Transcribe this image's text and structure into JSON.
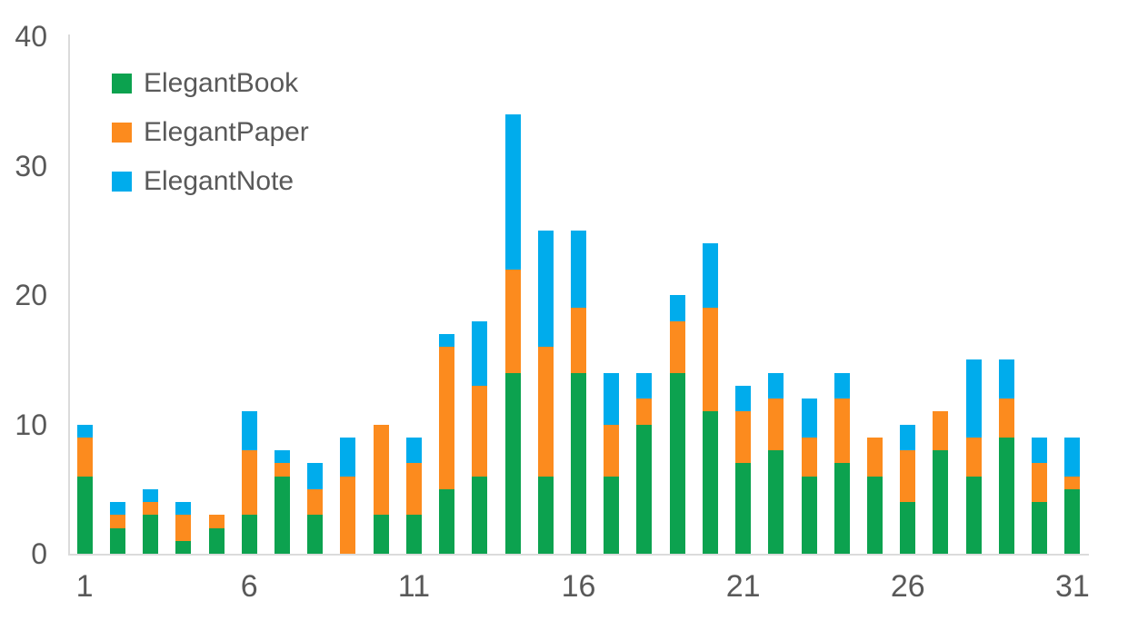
{
  "chart_data": {
    "type": "bar",
    "stacked": true,
    "title": "",
    "xlabel": "",
    "ylabel": "",
    "x": [
      1,
      2,
      3,
      4,
      5,
      6,
      7,
      8,
      9,
      10,
      11,
      12,
      13,
      14,
      15,
      16,
      17,
      18,
      19,
      20,
      21,
      22,
      23,
      24,
      25,
      26,
      27,
      28,
      29,
      30,
      31
    ],
    "series": [
      {
        "name": "ElegantBook",
        "color": "#0CA24F",
        "values": [
          6,
          2,
          3,
          1,
          2,
          3,
          6,
          3,
          0,
          3,
          3,
          5,
          6,
          14,
          6,
          14,
          6,
          10,
          14,
          11,
          7,
          8,
          6,
          7,
          6,
          4,
          8,
          6,
          9,
          4,
          5
        ]
      },
      {
        "name": "ElegantPaper",
        "color": "#FC8B1E",
        "values": [
          3,
          1,
          1,
          2,
          1,
          5,
          1,
          2,
          6,
          7,
          4,
          11,
          7,
          8,
          10,
          5,
          4,
          2,
          4,
          8,
          4,
          4,
          3,
          5,
          3,
          4,
          3,
          3,
          3,
          3,
          1
        ]
      },
      {
        "name": "ElegantNote",
        "color": "#00ACEC",
        "values": [
          1,
          1,
          1,
          1,
          0,
          3,
          1,
          2,
          3,
          0,
          2,
          1,
          5,
          12,
          9,
          6,
          4,
          2,
          2,
          5,
          2,
          2,
          3,
          2,
          0,
          2,
          0,
          6,
          3,
          2,
          3
        ]
      }
    ],
    "ylim": [
      0,
      40
    ],
    "yticks": [
      0,
      10,
      20,
      30,
      40
    ],
    "xticks": [
      1,
      6,
      11,
      16,
      21,
      26,
      31
    ],
    "grid": false,
    "legend_position": "top-left",
    "axis_color": "#DBDBDB",
    "text_color": "#595959",
    "background_color": "#FFFFFF"
  }
}
